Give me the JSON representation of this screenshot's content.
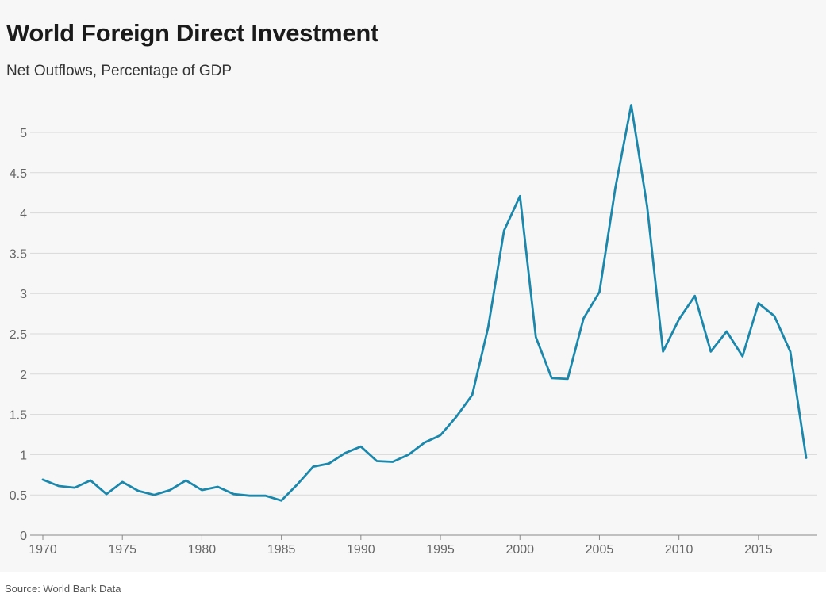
{
  "chart_data": {
    "type": "line",
    "title": "World Foreign Direct Investment",
    "subtitle": "Net Outflows, Percentage of GDP",
    "source": "Source: World Bank Data",
    "xlabel": "",
    "ylabel": "",
    "xlim": [
      1970,
      2018
    ],
    "ylim": [
      0,
      5.5
    ],
    "x_ticks": [
      1970,
      1975,
      1980,
      1985,
      1990,
      1995,
      2000,
      2005,
      2010,
      2015
    ],
    "y_ticks": [
      0,
      0.5,
      1,
      1.5,
      2,
      2.5,
      3,
      3.5,
      4,
      4.5,
      5
    ],
    "y_tick_labels": [
      "0",
      "0.5",
      "1",
      "1.5",
      "2",
      "2.5",
      "3",
      "3.5",
      "4",
      "4.5",
      "5"
    ],
    "grid": true,
    "legend": "none",
    "colors": {
      "line": "#1a87ab",
      "grid": "#d9d9d9",
      "axis": "#888888",
      "background": "#f7f7f7"
    },
    "series": [
      {
        "x": [
          1970,
          1971,
          1972,
          1973,
          1974,
          1975,
          1976,
          1977,
          1978,
          1979,
          1980,
          1981,
          1982,
          1983,
          1984,
          1985,
          1986,
          1987,
          1988,
          1989,
          1990,
          1991,
          1992,
          1993,
          1994,
          1995,
          1996,
          1997,
          1998,
          1999,
          2000,
          2001,
          2002,
          2003,
          2004,
          2005,
          2006,
          2007,
          2008,
          2009,
          2010,
          2011,
          2012,
          2013,
          2014,
          2015,
          2016,
          2017,
          2018
        ],
        "values": [
          0.69,
          0.61,
          0.59,
          0.68,
          0.51,
          0.66,
          0.55,
          0.5,
          0.56,
          0.68,
          0.56,
          0.6,
          0.51,
          0.49,
          0.49,
          0.43,
          0.63,
          0.85,
          0.89,
          1.02,
          1.1,
          0.92,
          0.91,
          1.0,
          1.15,
          1.24,
          1.47,
          1.74,
          2.58,
          3.78,
          4.21,
          2.46,
          1.95,
          1.94,
          2.69,
          3.02,
          4.31,
          5.34,
          4.08,
          2.28,
          2.68,
          2.97,
          2.28,
          2.53,
          2.22,
          2.88,
          2.72,
          2.28,
          0.96
        ]
      }
    ]
  }
}
